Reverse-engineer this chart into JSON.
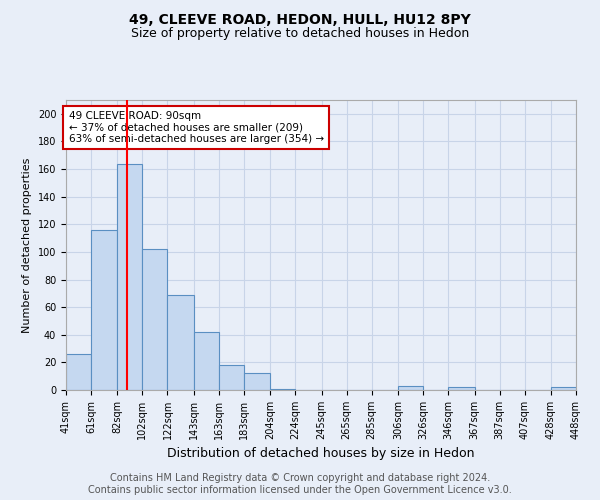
{
  "title1": "49, CLEEVE ROAD, HEDON, HULL, HU12 8PY",
  "title2": "Size of property relative to detached houses in Hedon",
  "xlabel": "Distribution of detached houses by size in Hedon",
  "ylabel": "Number of detached properties",
  "footer1": "Contains HM Land Registry data © Crown copyright and database right 2024.",
  "footer2": "Contains public sector information licensed under the Open Government Licence v3.0.",
  "bin_labels": [
    "41sqm",
    "61sqm",
    "82sqm",
    "102sqm",
    "122sqm",
    "143sqm",
    "163sqm",
    "183sqm",
    "204sqm",
    "224sqm",
    "245sqm",
    "265sqm",
    "285sqm",
    "306sqm",
    "326sqm",
    "346sqm",
    "367sqm",
    "387sqm",
    "407sqm",
    "428sqm",
    "448sqm"
  ],
  "bar_heights": [
    26,
    116,
    164,
    102,
    69,
    42,
    18,
    12,
    1,
    0,
    0,
    0,
    0,
    3,
    0,
    2,
    0,
    0,
    0,
    2
  ],
  "bar_color": "#c5d8f0",
  "bar_edge_color": "#5a8fc2",
  "red_line_x": 90,
  "bin_edges_raw": [
    41,
    61,
    82,
    102,
    122,
    143,
    163,
    183,
    204,
    224,
    245,
    265,
    285,
    306,
    326,
    346,
    367,
    387,
    407,
    428,
    448
  ],
  "annotation_text": "49 CLEEVE ROAD: 90sqm\n← 37% of detached houses are smaller (209)\n63% of semi-detached houses are larger (354) →",
  "annotation_box_color": "#ffffff",
  "annotation_box_edge": "#cc0000",
  "ylim": [
    0,
    210
  ],
  "yticks": [
    0,
    20,
    40,
    60,
    80,
    100,
    120,
    140,
    160,
    180,
    200
  ],
  "grid_color": "#c8d4e8",
  "bg_color": "#e8eef8",
  "title_fontsize": 10,
  "subtitle_fontsize": 9,
  "ylabel_fontsize": 8,
  "xlabel_fontsize": 9,
  "tick_fontsize": 7,
  "annot_fontsize": 7.5,
  "footer_fontsize": 7
}
